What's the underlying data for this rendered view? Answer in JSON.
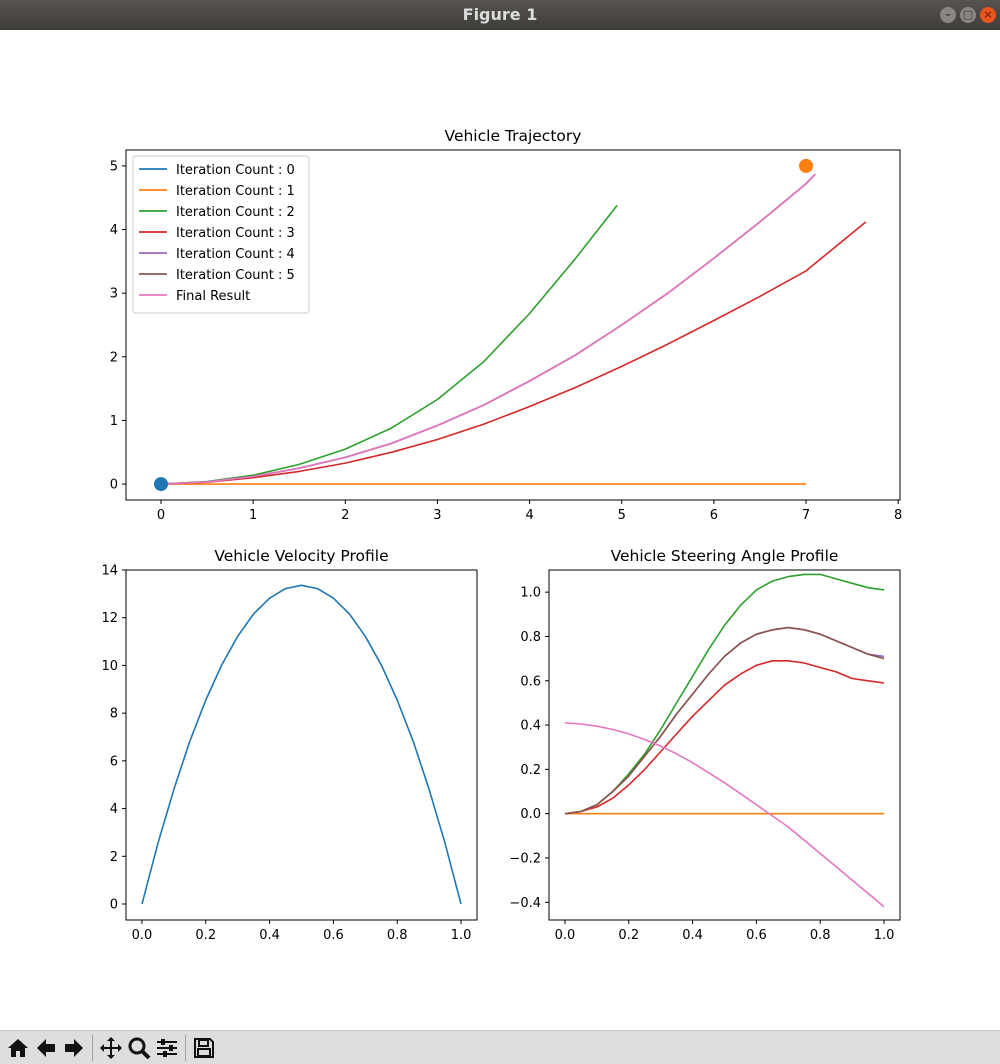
{
  "window": {
    "title": "Figure 1"
  },
  "toolbar": {
    "buttons": [
      "home-icon",
      "back-arrow-icon",
      "forward-arrow-icon",
      "pan-icon",
      "zoom-icon",
      "subplots-icon",
      "save-icon"
    ]
  },
  "colors": {
    "c0": "#1f77b4",
    "c1": "#ff7f0e",
    "c2": "#2ca02c",
    "c3": "#d62728",
    "c4": "#9467bd",
    "c5": "#8c564b",
    "c6": "#e377c2"
  },
  "chart_data": [
    {
      "type": "line",
      "title": "Vehicle Trajectory",
      "xlabel": "",
      "ylabel": "",
      "xlim": [
        -0.38,
        8.02
      ],
      "ylim": [
        -0.25,
        5.25
      ],
      "xticks": [
        0,
        1,
        2,
        3,
        4,
        5,
        6,
        7,
        8
      ],
      "yticks": [
        0,
        1,
        2,
        3,
        4,
        5
      ],
      "legend": "top-left",
      "series": [
        {
          "name": "Iteration Count : 0",
          "color": "#1f77b4",
          "x": [
            0
          ],
          "y": [
            0
          ]
        },
        {
          "name": "Iteration Count : 1",
          "color": "#ff7f0e",
          "x": [
            0,
            7
          ],
          "y": [
            0,
            0
          ]
        },
        {
          "name": "Iteration Count : 2",
          "color": "#2ca02c",
          "x": [
            0,
            0.5,
            1,
            1.5,
            2,
            2.5,
            3,
            3.5,
            4,
            4.5,
            4.95
          ],
          "y": [
            0,
            0.04,
            0.14,
            0.31,
            0.55,
            0.88,
            1.33,
            1.92,
            2.68,
            3.55,
            4.38
          ]
        },
        {
          "name": "Iteration Count : 3",
          "color": "#d62728",
          "x": [
            0,
            0.5,
            1,
            1.5,
            2,
            2.5,
            3,
            3.5,
            4,
            4.5,
            5,
            5.5,
            6,
            6.5,
            7,
            7.65
          ],
          "y": [
            0,
            0.03,
            0.1,
            0.2,
            0.33,
            0.5,
            0.7,
            0.94,
            1.22,
            1.52,
            1.85,
            2.2,
            2.57,
            2.95,
            3.35,
            4.12
          ]
        },
        {
          "name": "Iteration Count : 4",
          "color": "#9467bd",
          "x": [
            0,
            0.5,
            1,
            1.5,
            2,
            2.5,
            3,
            3.5,
            4,
            4.5,
            5,
            5.5,
            6,
            6.5,
            7,
            7.1
          ],
          "y": [
            0,
            0.035,
            0.12,
            0.25,
            0.42,
            0.64,
            0.92,
            1.24,
            1.62,
            2.03,
            2.5,
            3.0,
            3.55,
            4.12,
            4.72,
            4.87
          ]
        },
        {
          "name": "Iteration Count : 5",
          "color": "#8c564b",
          "x": [
            0,
            0.5,
            1,
            1.5,
            2,
            2.5,
            3,
            3.5,
            4,
            4.5,
            5,
            5.5,
            6,
            6.5,
            7,
            7.1
          ],
          "y": [
            0,
            0.035,
            0.12,
            0.25,
            0.42,
            0.64,
            0.92,
            1.24,
            1.62,
            2.03,
            2.5,
            3.0,
            3.55,
            4.12,
            4.72,
            4.87
          ]
        },
        {
          "name": "Final Result",
          "color": "#e377c2",
          "x": [
            0,
            0.5,
            1,
            1.5,
            2,
            2.5,
            3,
            3.5,
            4,
            4.5,
            5,
            5.5,
            6,
            6.5,
            7,
            7.1
          ],
          "y": [
            0,
            0.035,
            0.12,
            0.25,
            0.42,
            0.64,
            0.92,
            1.24,
            1.62,
            2.03,
            2.5,
            3.0,
            3.55,
            4.12,
            4.72,
            4.87
          ]
        }
      ],
      "markers": [
        {
          "x": 0,
          "y": 0,
          "color": "#1f77b4"
        },
        {
          "x": 7,
          "y": 5,
          "color": "#ff7f0e"
        }
      ]
    },
    {
      "type": "line",
      "title": "Vehicle Velocity Profile",
      "xlabel": "",
      "ylabel": "",
      "xlim": [
        -0.05,
        1.05
      ],
      "ylim": [
        -0.67,
        14.0
      ],
      "xticks": [
        0.0,
        0.2,
        0.4,
        0.6,
        0.8,
        1.0
      ],
      "xticklabels": [
        "0.0",
        "0.2",
        "0.4",
        "0.6",
        "0.8",
        "1.0"
      ],
      "yticks": [
        0,
        2,
        4,
        6,
        8,
        10,
        12,
        14
      ],
      "series": [
        {
          "color": "#1f77b4",
          "x": [
            0,
            0.05,
            0.1,
            0.15,
            0.2,
            0.25,
            0.3,
            0.35,
            0.4,
            0.45,
            0.5,
            0.55,
            0.6,
            0.65,
            0.7,
            0.75,
            0.8,
            0.85,
            0.9,
            0.95,
            1.0
          ],
          "y": [
            0,
            2.54,
            4.81,
            6.82,
            8.55,
            10.02,
            11.22,
            12.16,
            12.82,
            13.22,
            13.36,
            13.22,
            12.82,
            12.16,
            11.22,
            10.02,
            8.55,
            6.82,
            4.81,
            2.54,
            0
          ]
        }
      ]
    },
    {
      "type": "line",
      "title": "Vehicle Steering Angle Profile",
      "xlabel": "",
      "ylabel": "",
      "xlim": [
        -0.05,
        1.05
      ],
      "ylim": [
        -0.48,
        1.1
      ],
      "xticks": [
        0.0,
        0.2,
        0.4,
        0.6,
        0.8,
        1.0
      ],
      "xticklabels": [
        "0.0",
        "0.2",
        "0.4",
        "0.6",
        "0.8",
        "1.0"
      ],
      "yticks": [
        -0.4,
        -0.2,
        0.0,
        0.2,
        0.4,
        0.6,
        0.8,
        1.0
      ],
      "yticklabels": [
        "−0.4",
        "−0.2",
        "0.0",
        "0.2",
        "0.4",
        "0.6",
        "0.8",
        "1.0"
      ],
      "series": [
        {
          "color": "#ff7f0e",
          "x": [
            0,
            1.0
          ],
          "y": [
            0,
            0
          ]
        },
        {
          "color": "#2ca02c",
          "x": [
            0,
            0.05,
            0.1,
            0.15,
            0.2,
            0.25,
            0.3,
            0.35,
            0.4,
            0.45,
            0.5,
            0.55,
            0.6,
            0.65,
            0.7,
            0.75,
            0.8,
            0.85,
            0.9,
            0.95,
            1.0
          ],
          "y": [
            0,
            0.01,
            0.04,
            0.1,
            0.18,
            0.27,
            0.38,
            0.5,
            0.62,
            0.74,
            0.85,
            0.94,
            1.01,
            1.05,
            1.07,
            1.08,
            1.08,
            1.06,
            1.04,
            1.02,
            1.01
          ]
        },
        {
          "color": "#d62728",
          "x": [
            0,
            0.05,
            0.1,
            0.15,
            0.2,
            0.25,
            0.3,
            0.35,
            0.4,
            0.45,
            0.5,
            0.55,
            0.6,
            0.65,
            0.7,
            0.75,
            0.8,
            0.85,
            0.9,
            0.95,
            1.0
          ],
          "y": [
            0,
            0.01,
            0.03,
            0.07,
            0.13,
            0.2,
            0.28,
            0.36,
            0.44,
            0.51,
            0.58,
            0.63,
            0.67,
            0.69,
            0.69,
            0.68,
            0.66,
            0.64,
            0.61,
            0.6,
            0.59
          ]
        },
        {
          "color": "#9467bd",
          "x": [
            0,
            0.05,
            0.1,
            0.15,
            0.2,
            0.25,
            0.3,
            0.35,
            0.4,
            0.45,
            0.5,
            0.55,
            0.6,
            0.65,
            0.7,
            0.75,
            0.8,
            0.85,
            0.9,
            0.95,
            1.0
          ],
          "y": [
            0,
            0.01,
            0.04,
            0.1,
            0.17,
            0.26,
            0.35,
            0.45,
            0.54,
            0.63,
            0.71,
            0.77,
            0.81,
            0.83,
            0.84,
            0.83,
            0.81,
            0.78,
            0.75,
            0.72,
            0.71
          ]
        },
        {
          "color": "#8c564b",
          "x": [
            0,
            0.05,
            0.1,
            0.15,
            0.2,
            0.25,
            0.3,
            0.35,
            0.4,
            0.45,
            0.5,
            0.55,
            0.6,
            0.65,
            0.7,
            0.75,
            0.8,
            0.85,
            0.9,
            0.95,
            1.0
          ],
          "y": [
            0,
            0.01,
            0.04,
            0.1,
            0.17,
            0.26,
            0.35,
            0.45,
            0.54,
            0.63,
            0.71,
            0.77,
            0.81,
            0.83,
            0.84,
            0.83,
            0.81,
            0.78,
            0.75,
            0.72,
            0.7
          ]
        },
        {
          "color": "#e377c2",
          "x": [
            0,
            0.05,
            0.1,
            0.15,
            0.2,
            0.25,
            0.3,
            0.35,
            0.4,
            0.45,
            0.5,
            0.55,
            0.6,
            0.65,
            0.7,
            0.75,
            0.8,
            0.85,
            0.9,
            0.95,
            1.0
          ],
          "y": [
            0.41,
            0.405,
            0.395,
            0.38,
            0.36,
            0.335,
            0.305,
            0.27,
            0.23,
            0.185,
            0.14,
            0.09,
            0.04,
            -0.01,
            -0.06,
            -0.12,
            -0.18,
            -0.24,
            -0.3,
            -0.36,
            -0.42
          ]
        }
      ]
    }
  ]
}
